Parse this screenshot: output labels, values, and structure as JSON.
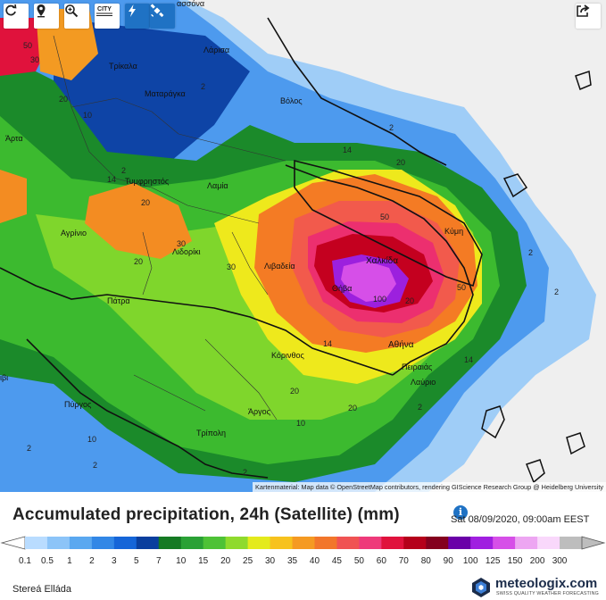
{
  "toolbar": {
    "buttons": [
      {
        "name": "refresh-button",
        "icon": "refresh-icon"
      },
      {
        "name": "location-button",
        "icon": "map-pin-icon"
      },
      {
        "name": "zoom-button",
        "icon": "magnifier-plus-icon"
      },
      {
        "name": "city-layer-button",
        "icon": "city-icon"
      },
      {
        "name": "lightning-layer-button",
        "icon": "lightning-icon"
      },
      {
        "name": "satellite-layer-button",
        "icon": "satellite-icon"
      }
    ],
    "city_label": "CITY",
    "share_icon": "share-icon"
  },
  "map": {
    "cities": [
      {
        "id": "larisa",
        "label": "Λάρισα"
      },
      {
        "id": "trikala",
        "label": "Τρίκαλα"
      },
      {
        "id": "matarangka",
        "label": "Ματαράγκα"
      },
      {
        "id": "volos",
        "label": "Βόλος"
      },
      {
        "id": "arta",
        "label": "Άρτα"
      },
      {
        "id": "tymfristos",
        "label": "Τυμφρηστός"
      },
      {
        "id": "lamia",
        "label": "Λαμία"
      },
      {
        "id": "agrinio",
        "label": "Αγρίνιο"
      },
      {
        "id": "lidoriki",
        "label": "Λιδορίκι"
      },
      {
        "id": "livadeia",
        "label": "Λιβαδεία"
      },
      {
        "id": "chalkida",
        "label": "Χαλκίδα"
      },
      {
        "id": "kymi",
        "label": "Κύμη"
      },
      {
        "id": "thiva",
        "label": "Θήβα"
      },
      {
        "id": "patra",
        "label": "Πάτρα"
      },
      {
        "id": "korinthos",
        "label": "Κόρινθος"
      },
      {
        "id": "athina",
        "label": "Αθήνα"
      },
      {
        "id": "peiraias",
        "label": "Πειραιάς"
      },
      {
        "id": "lavrio",
        "label": "Λαύριο"
      },
      {
        "id": "pyrgos",
        "label": "Πύργος"
      },
      {
        "id": "argos",
        "label": "Άργος"
      },
      {
        "id": "tripoli",
        "label": "Τρίπολη"
      },
      {
        "id": "top-cut",
        "label": "ασσόνα"
      },
      {
        "id": "left-cut",
        "label": "ιβι"
      }
    ],
    "isoline_labels": [
      "50",
      "30",
      "10",
      "2",
      "20",
      "14",
      "2",
      "20",
      "14",
      "20",
      "30",
      "20",
      "30",
      "50",
      "2",
      "20",
      "50",
      "100",
      "2",
      "14",
      "20",
      "20",
      "10",
      "2",
      "10",
      "14",
      "2",
      "2",
      "2",
      "2"
    ],
    "attribution": "Kartenmaterial: Map data © OpenStreetMap contributors, rendering GIScience Research Group @ Heidelberg University"
  },
  "footer": {
    "title": "Accumulated precipitation, 24h (Satellite) (mm)",
    "datetime": "Sat 08/09/2020, 09:00am EEST",
    "info_icon": "info-icon",
    "region": "Stereá Elláda",
    "brand_name": "meteologix.com",
    "brand_tagline": "SWISS QUALITY WEATHER FORECASTING"
  },
  "legend": {
    "ticks": [
      "0.1",
      "0.5",
      "1",
      "2",
      "3",
      "5",
      "7",
      "10",
      "15",
      "20",
      "25",
      "30",
      "35",
      "40",
      "45",
      "50",
      "60",
      "70",
      "80",
      "90",
      "100",
      "125",
      "150",
      "200",
      "300"
    ],
    "colors": [
      "#b9dcff",
      "#8cc4f8",
      "#5aa8f0",
      "#3287e6",
      "#1565d8",
      "#0a3f9e",
      "#157a23",
      "#2aa135",
      "#4ec236",
      "#8fda2d",
      "#e4ea1c",
      "#f7c21d",
      "#f59a22",
      "#f2762b",
      "#f05353",
      "#ee3a7a",
      "#e0123c",
      "#b5001a",
      "#84001e",
      "#6a00a8",
      "#a01fe0",
      "#d64fe8",
      "#eda6f2",
      "#f9d8fb",
      "#bdbdbd"
    ]
  }
}
